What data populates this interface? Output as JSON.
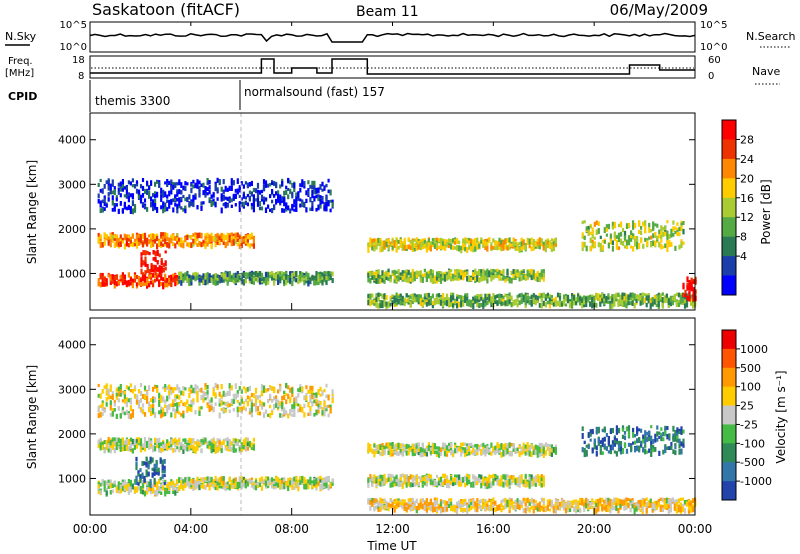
{
  "header": {
    "title": "Saskatoon (fitACF)",
    "beam": "Beam 11",
    "date": "06/May/2009"
  },
  "top_panels": {
    "nsky_label": "N.Sky",
    "nsky_ticks": [
      "10^5",
      "10^0"
    ],
    "nsearch_label": "N.Search",
    "nsearch_ticks": [
      "10^5",
      "10^0"
    ],
    "freq_label_line1": "Freq.",
    "freq_label_line2": "[MHz]",
    "freq_ticks": [
      "18",
      "8"
    ],
    "nave_label": "Nave",
    "nave_ticks": [
      "60",
      "0"
    ],
    "cpid_label": "CPID",
    "cpid_segments": [
      {
        "name": "themis 3300",
        "start_hour": 0
      },
      {
        "name": "normalsound (fast) 157",
        "start_hour": 6
      }
    ]
  },
  "chart_data": [
    {
      "type": "heatmap",
      "name": "power",
      "ylabel": "Slant Range [km]",
      "xlabel": "Time UT",
      "x_ticks": [
        "00:00",
        "04:00",
        "08:00",
        "12:00",
        "16:00",
        "20:00",
        "00:00"
      ],
      "xlim_hours": [
        0,
        24
      ],
      "y_ticks": [
        1000,
        2000,
        3000,
        4000
      ],
      "ylim": [
        180,
        4600
      ],
      "colorbar_label": "Power [dB]",
      "colorbar_ticks": [
        "28",
        "24",
        "20",
        "16",
        "12",
        "8",
        "4"
      ],
      "colors": [
        "#0000ff",
        "#1a3faa",
        "#2a7a55",
        "#55aa44",
        "#aacc33",
        "#ffcc00",
        "#ff8800",
        "#ee3300",
        "#ff0000"
      ],
      "bands": [
        {
          "t0": 0.3,
          "t1": 6.5,
          "range": 1800,
          "width": 260,
          "level": 0.72
        },
        {
          "t0": 0.3,
          "t1": 3.5,
          "range": 900,
          "width": 260,
          "level": 0.85
        },
        {
          "t0": 3.5,
          "t1": 9.6,
          "range": 950,
          "width": 220,
          "level": 0.35
        },
        {
          "t0": 2.0,
          "t1": 3.0,
          "range": 1300,
          "width": 500,
          "level": 0.95
        },
        {
          "t0": 11.0,
          "t1": 18.5,
          "range": 1700,
          "width": 230,
          "level": 0.55
        },
        {
          "t0": 11.0,
          "t1": 18.0,
          "range": 1000,
          "width": 220,
          "level": 0.45
        },
        {
          "t0": 11.0,
          "t1": 24.0,
          "range": 450,
          "width": 250,
          "level": 0.4
        },
        {
          "t0": 19.5,
          "t1": 23.5,
          "range": 1900,
          "width": 600,
          "level": 0.5
        },
        {
          "t0": 23.5,
          "t1": 24.0,
          "range": 700,
          "width": 500,
          "level": 0.95
        },
        {
          "t0": 0.3,
          "t1": 9.6,
          "range": 2800,
          "width": 700,
          "level": 0.1
        }
      ]
    },
    {
      "type": "heatmap",
      "name": "velocity",
      "ylabel": "Slant Range [km]",
      "xlabel": "Time UT",
      "x_ticks": [
        "00:00",
        "04:00",
        "08:00",
        "12:00",
        "16:00",
        "20:00",
        "00:00"
      ],
      "xlim_hours": [
        0,
        24
      ],
      "y_ticks": [
        1000,
        2000,
        3000,
        4000
      ],
      "ylim": [
        180,
        4600
      ],
      "colorbar_label": "Velocity [m s⁻¹]",
      "colorbar_ticks": [
        "1000",
        "500",
        "100",
        "25",
        "-25",
        "-100",
        "-500",
        "-1000"
      ],
      "colors": [
        "#2244aa",
        "#3377aa",
        "#2e8b57",
        "#44bb44",
        "#c8c8c8",
        "#ffcc00",
        "#ff9900",
        "#ff5500",
        "#ee0000"
      ],
      "bands": [
        {
          "t0": 0.3,
          "t1": 6.5,
          "range": 1800,
          "width": 260,
          "level": 0.5
        },
        {
          "t0": 0.3,
          "t1": 3.5,
          "range": 850,
          "width": 280,
          "level": 0.5
        },
        {
          "t0": 1.8,
          "t1": 3.0,
          "range": 1200,
          "width": 600,
          "level": 0.15
        },
        {
          "t0": 3.5,
          "t1": 9.6,
          "range": 950,
          "width": 220,
          "level": 0.5
        },
        {
          "t0": 11.0,
          "t1": 18.5,
          "range": 1700,
          "width": 230,
          "level": 0.5
        },
        {
          "t0": 11.0,
          "t1": 18.0,
          "range": 1000,
          "width": 220,
          "level": 0.5
        },
        {
          "t0": 11.0,
          "t1": 24.0,
          "range": 450,
          "width": 250,
          "level": 0.6
        },
        {
          "t0": 19.5,
          "t1": 23.5,
          "range": 1900,
          "width": 600,
          "level": 0.2
        },
        {
          "t0": 0.3,
          "t1": 9.6,
          "range": 2800,
          "width": 700,
          "level": 0.55
        }
      ]
    }
  ]
}
